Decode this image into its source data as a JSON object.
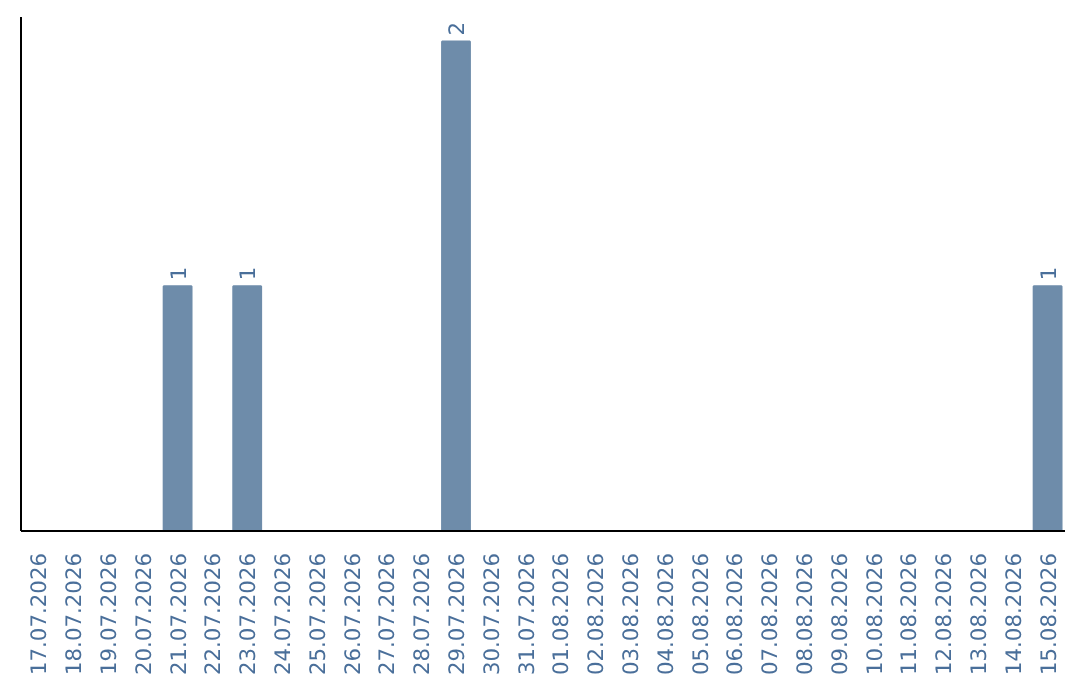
{
  "chart_data": {
    "type": "bar",
    "categories": [
      "17.07.2026",
      "18.07.2026",
      "19.07.2026",
      "20.07.2026",
      "21.07.2026",
      "22.07.2026",
      "23.07.2026",
      "24.07.2026",
      "25.07.2026",
      "26.07.2026",
      "27.07.2026",
      "28.07.2026",
      "29.07.2026",
      "30.07.2026",
      "31.07.2026",
      "01.08.2026",
      "02.08.2026",
      "03.08.2026",
      "04.08.2026",
      "05.08.2026",
      "06.08.2026",
      "07.08.2026",
      "08.08.2026",
      "09.08.2026",
      "10.08.2026",
      "11.08.2026",
      "12.08.2026",
      "13.08.2026",
      "14.08.2026",
      "15.08.2026"
    ],
    "values": [
      0,
      0,
      0,
      0,
      1,
      0,
      1,
      0,
      0,
      0,
      0,
      0,
      2,
      0,
      0,
      0,
      0,
      0,
      0,
      0,
      0,
      0,
      0,
      0,
      0,
      0,
      0,
      0,
      0,
      1
    ],
    "value_labels": [
      null,
      null,
      null,
      null,
      "1",
      null,
      "1",
      null,
      null,
      null,
      null,
      null,
      "2",
      null,
      null,
      null,
      null,
      null,
      null,
      null,
      null,
      null,
      null,
      null,
      null,
      null,
      null,
      null,
      null,
      "1"
    ],
    "color": "#6e8caa",
    "grid": false,
    "tick_labels": "x"
  }
}
